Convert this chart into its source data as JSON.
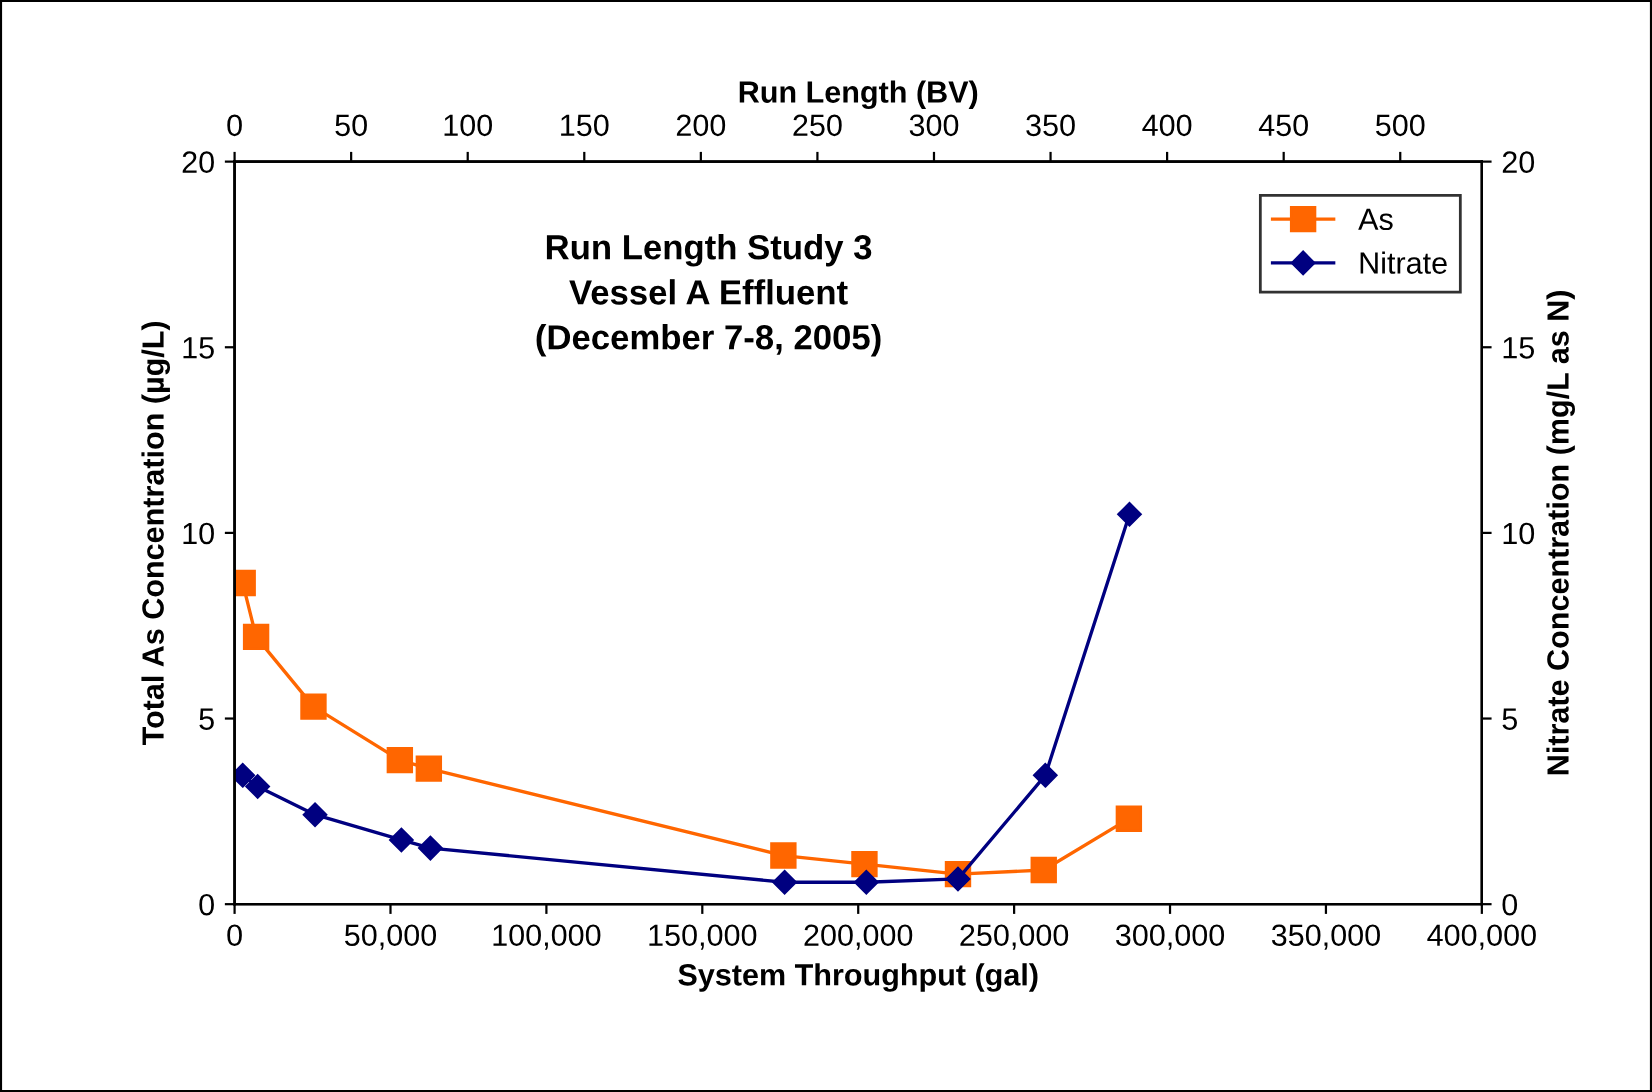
{
  "chart_data": {
    "type": "line",
    "title": "Run Length Study 3\nVessel A Effluent\n(December 7-8, 2005)",
    "xlabel": "System Throughput (gal)",
    "ylabel": "Total As Concentration (µg/L)",
    "y2label": "Nitrate Concentration (mg/L as N)",
    "x2label": "Run Length (BV)",
    "series": [
      {
        "name": "As",
        "color": "#ff6600",
        "marker": "square",
        "x": [
          2600,
          6900,
          25300,
          53000,
          62300,
          176000,
          202000,
          232000,
          259500,
          286800
        ],
        "values": [
          8.65,
          7.2,
          5.32,
          3.88,
          3.65,
          1.31,
          1.08,
          0.81,
          0.92,
          2.3
        ]
      },
      {
        "name": "Nitrate",
        "color": "#000080",
        "marker": "diamond",
        "axis": "y2",
        "x": [
          2600,
          7400,
          25800,
          53500,
          62800,
          176400,
          202600,
          232000,
          260000,
          287000
        ],
        "values": [
          3.47,
          3.17,
          2.41,
          1.73,
          1.51,
          0.59,
          0.59,
          0.68,
          3.47,
          10.5
        ]
      }
    ],
    "xlim": [
      0,
      400000
    ],
    "xticks": [
      {
        "value": 0,
        "label": "0"
      },
      {
        "value": 50000,
        "label": "50,000"
      },
      {
        "value": 100000,
        "label": "100,000"
      },
      {
        "value": 150000,
        "label": "150,000"
      },
      {
        "value": 200000,
        "label": "200,000"
      },
      {
        "value": 250000,
        "label": "250,000"
      },
      {
        "value": 300000,
        "label": "300,000"
      },
      {
        "value": 350000,
        "label": "350,000"
      },
      {
        "value": 400000,
        "label": "400,000"
      }
    ],
    "x2lim": [
      0,
      535
    ],
    "x2ticks": [
      0,
      50,
      100,
      150,
      200,
      250,
      300,
      350,
      400,
      450,
      500
    ],
    "ylim": [
      0,
      20
    ],
    "yticks": [
      0,
      5,
      10,
      15,
      20
    ],
    "y2lim": [
      0,
      20
    ],
    "y2ticks": [
      0,
      5,
      10,
      15,
      20
    ],
    "grid": false,
    "legend": "top right",
    "line_style": "solid"
  }
}
